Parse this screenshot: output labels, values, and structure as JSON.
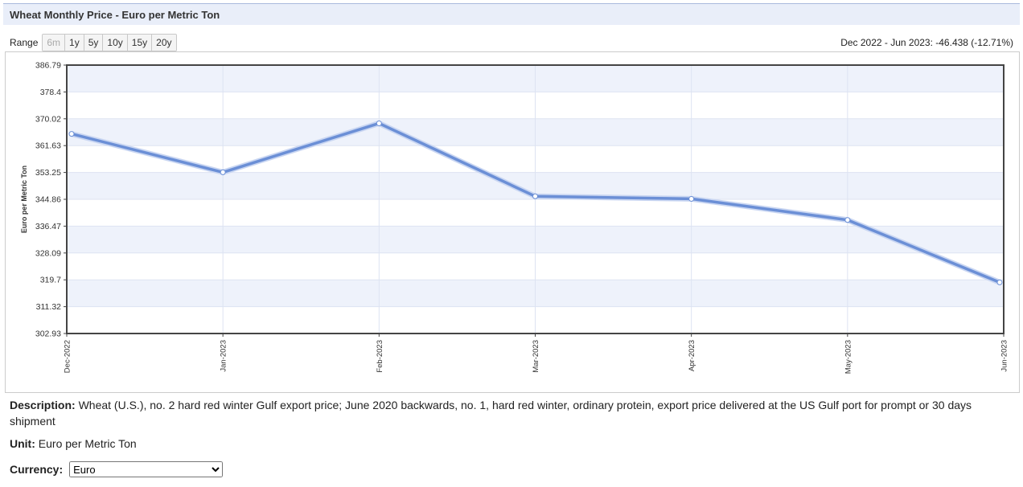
{
  "header": {
    "title": "Wheat Monthly Price - Euro per Metric Ton"
  },
  "range": {
    "label": "Range",
    "buttons": [
      "6m",
      "1y",
      "5y",
      "10y",
      "15y",
      "20y"
    ]
  },
  "change_text": "Dec 2022 - Jun 2023: -46.438 (-12.71%)",
  "chart_data": {
    "type": "line",
    "x": [
      "Dec-2022",
      "Jan-2023",
      "Feb-2023",
      "Mar-2023",
      "Apr-2023",
      "May-2023",
      "Jun-2023"
    ],
    "series": [
      {
        "values": [
          365.3,
          353.3,
          368.6,
          345.8,
          345.0,
          338.4,
          318.9
        ]
      }
    ],
    "ylabel": "Euro per Metric Ton",
    "yticks": [
      "386.79",
      "378.4",
      "370.02",
      "361.63",
      "353.25",
      "344.86",
      "336.47",
      "328.09",
      "319.7",
      "311.32",
      "302.93"
    ],
    "ylim": [
      302.93,
      386.79
    ],
    "grid": true,
    "colors": {
      "line": "#6b8fd6",
      "band": "#eef2fb",
      "grid": "#dde3f2"
    }
  },
  "description": {
    "label": "Description:",
    "text": "Wheat (U.S.), no. 2 hard red winter Gulf export price; June 2020 backwards, no. 1, hard red winter, ordinary protein, export price delivered at the US Gulf port for prompt or 30 days shipment"
  },
  "unit": {
    "label": "Unit:",
    "value": "Euro per Metric Ton"
  },
  "currency": {
    "label": "Currency:",
    "selected": "Euro"
  }
}
